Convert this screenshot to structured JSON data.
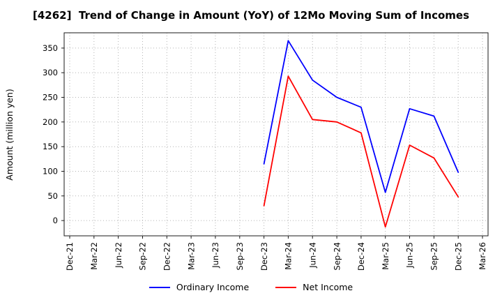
{
  "chart_data": {
    "type": "line",
    "title": "[4262]  Trend of Change in Amount (YoY) of 12Mo Moving Sum of Incomes",
    "xlabel": "",
    "ylabel": "Amount (million yen)",
    "x_ticks": [
      "Dec-21",
      "Mar-22",
      "Jun-22",
      "Sep-22",
      "Dec-22",
      "Mar-23",
      "Jun-23",
      "Sep-23",
      "Dec-23",
      "Mar-24",
      "Jun-24",
      "Sep-24",
      "Dec-24",
      "Mar-25",
      "Jun-25",
      "Sep-25",
      "Dec-25",
      "Mar-26"
    ],
    "y_ticks": [
      0,
      50,
      100,
      150,
      200,
      250,
      300,
      350
    ],
    "ylim": [
      -31,
      381
    ],
    "grid": true,
    "grid_color": "#b3b3b3",
    "frame_color": "#1a1a1a",
    "legend_position": "bottom",
    "series": [
      {
        "name": "Ordinary Income",
        "color": "#0000ff",
        "values": [
          null,
          null,
          null,
          null,
          null,
          null,
          null,
          null,
          115,
          365,
          285,
          250,
          230,
          57,
          227,
          212,
          98,
          null
        ]
      },
      {
        "name": "Net Income",
        "color": "#ff0000",
        "values": [
          null,
          null,
          null,
          null,
          null,
          null,
          null,
          null,
          30,
          293,
          205,
          200,
          178,
          -13,
          153,
          127,
          48,
          null
        ]
      }
    ]
  }
}
